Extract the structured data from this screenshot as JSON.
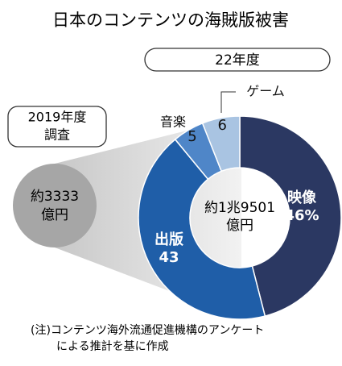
{
  "chart_data": {
    "type": "donut",
    "title": "日本のコンテンツの海賊版被害",
    "subtitle": "22年度",
    "categories": [
      "映像",
      "出版",
      "音楽",
      "ゲーム"
    ],
    "values": [
      46,
      43,
      5,
      6
    ],
    "value_labels": [
      "46%",
      "43",
      "5",
      "6"
    ],
    "colors": [
      "#2b3862",
      "#1f5ea8",
      "#4f86c8",
      "#a9c4e2"
    ],
    "center_label": [
      "約1兆9501",
      "億円"
    ],
    "comparison_label": [
      "2019年度",
      "調査"
    ],
    "comparison_value": [
      "約3333",
      "億円"
    ],
    "note": [
      "(注)コンテンツ海外流通促進機構のアンケート",
      "による推計を基に作成"
    ]
  }
}
